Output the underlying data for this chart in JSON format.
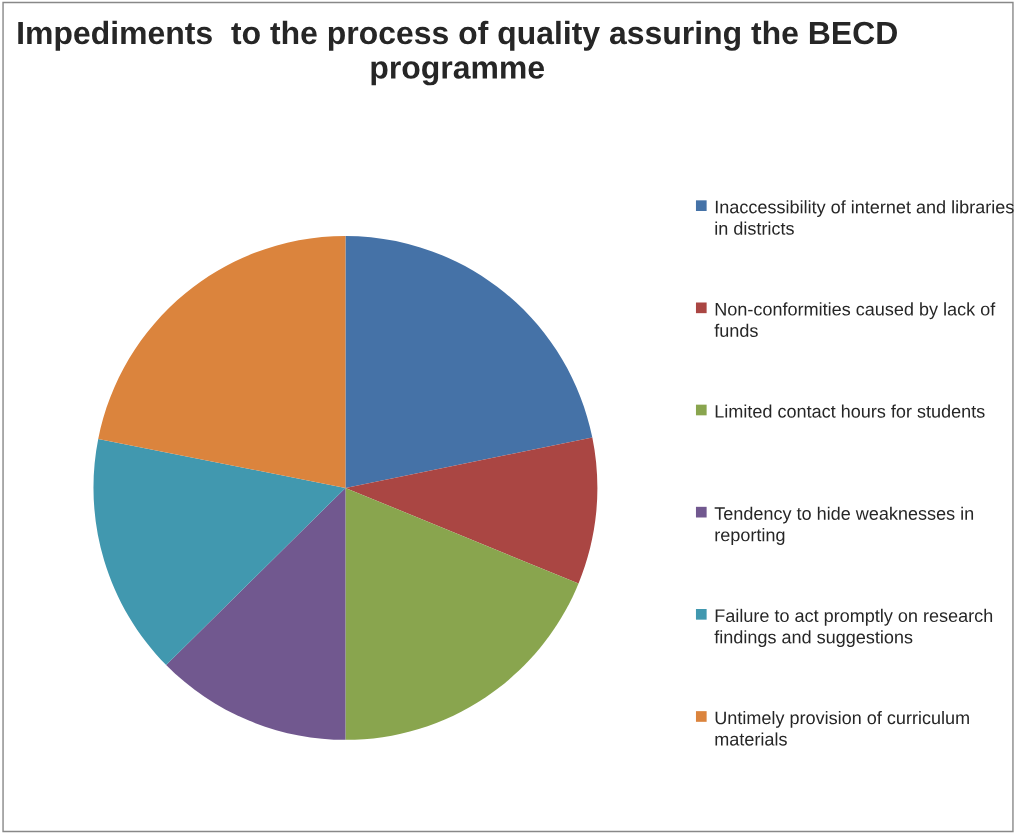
{
  "chart_data": {
    "type": "pie",
    "title": "Impediments  to the process of quality assuring the BECD programme",
    "categories": [
      "Inaccessibility of internet and libraries in districts",
      "Non-conformities caused by lack of funds",
      "Limited contact hours for students",
      "Tendency to hide weaknesses in reporting",
      "Failure to act promptly on research findings and suggestions",
      "Untimely provision of curriculum materials"
    ],
    "values": [
      21.8,
      9.4,
      18.8,
      12.6,
      15.5,
      21.9
    ],
    "colors": [
      "#4572a7",
      "#aa4643",
      "#89a54e",
      "#71588f",
      "#4198af",
      "#db843d"
    ],
    "legend": "right"
  }
}
